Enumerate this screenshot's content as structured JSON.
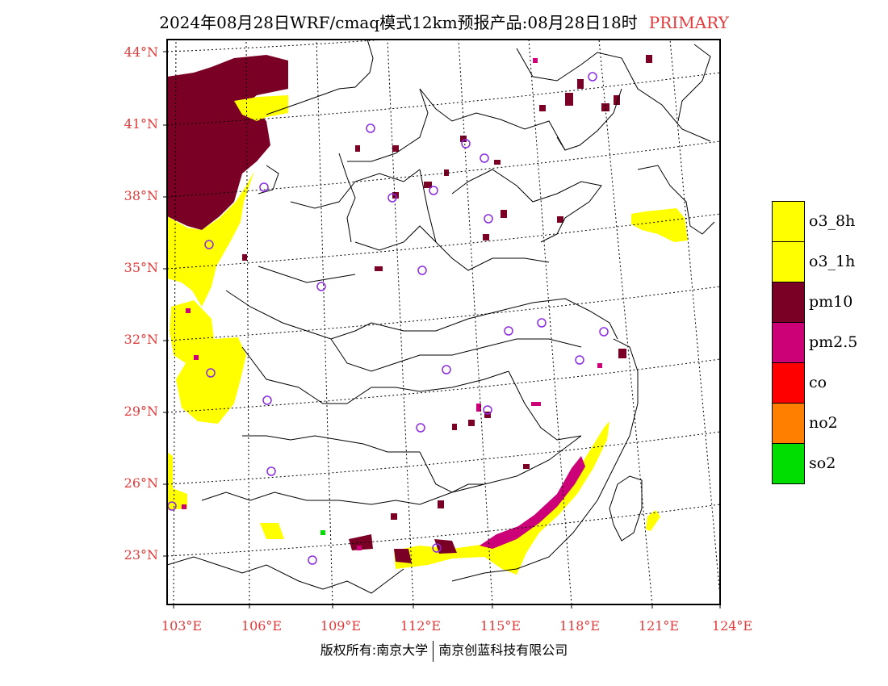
{
  "title": {
    "main": "2024年08月28日WRF/cmaq模式12km预报产品:08月28日18时",
    "tag": "PRIMARY"
  },
  "colors": {
    "o3_8h": "#ffff00",
    "o3_1h": "#ffff00",
    "pm10": "#7a0026",
    "pm2_5": "#cc0077",
    "co": "#ff0000",
    "no2": "#ff7f00",
    "so2": "#00dd00",
    "axis_label": "#e23a3a",
    "station_marker": "#8a2be2"
  },
  "lat_labels": [
    "44°N",
    "41°N",
    "38°N",
    "35°N",
    "32°N",
    "29°N",
    "26°N",
    "23°N"
  ],
  "lon_labels": [
    "103°E",
    "106°E",
    "109°E",
    "112°E",
    "115°E",
    "118°E",
    "121°E",
    "124°E"
  ],
  "legend": [
    {
      "label": "o3_8h",
      "color": "#ffff00"
    },
    {
      "label": "o3_1h",
      "color": "#ffff00"
    },
    {
      "label": "pm10",
      "color": "#7a0026"
    },
    {
      "label": "pm2.5",
      "color": "#cc0077"
    },
    {
      "label": "co",
      "color": "#ff0000"
    },
    {
      "label": "no2",
      "color": "#ff7f00"
    },
    {
      "label": "so2",
      "color": "#00dd00"
    }
  ],
  "copyright": {
    "left": "版权所有:南京大学",
    "right": "南京创蓝科技有限公司"
  }
}
